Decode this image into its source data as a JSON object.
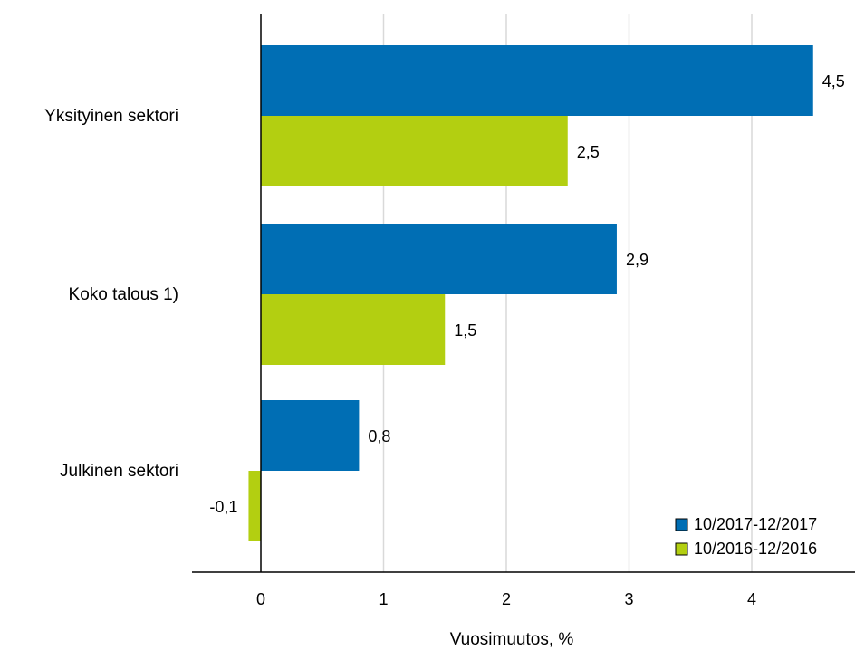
{
  "chart_data": {
    "type": "bar",
    "orientation": "horizontal",
    "categories": [
      "Yksityinen sektori",
      "Koko talous 1)",
      "Julkinen sektori"
    ],
    "series": [
      {
        "name": "10/2017-12/2017",
        "color": "#006eb4",
        "values": [
          4.5,
          2.9,
          0.8
        ]
      },
      {
        "name": "10/2016-12/2016",
        "color": "#b3cf11",
        "values": [
          2.5,
          1.5,
          -0.1
        ]
      }
    ],
    "data_labels": [
      [
        "4,5",
        "2,9",
        "0,8"
      ],
      [
        "2,5",
        "1,5",
        "-0,1"
      ]
    ],
    "xlabel": "Vuosimuutos, %",
    "xlim": [
      -0.55,
      4.9
    ],
    "x_ticks": [
      0,
      1,
      2,
      3,
      4
    ],
    "x_tick_labels": [
      "0",
      "1",
      "2",
      "3",
      "4"
    ],
    "grid": "vertical",
    "legend_position": "bottom-right"
  }
}
